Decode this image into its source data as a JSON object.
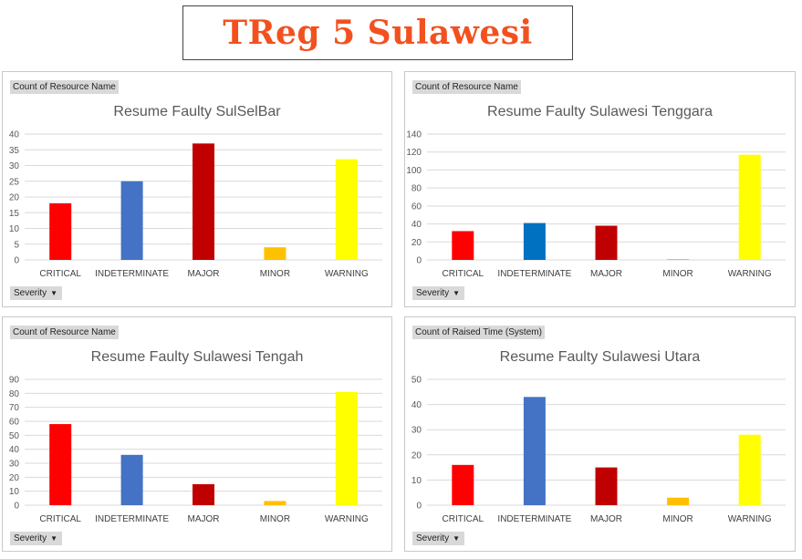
{
  "banner": {
    "title": "TReg 5 Sulawesi",
    "color": "#f2511f"
  },
  "colors": {
    "CRITICAL": "#ff0000",
    "INDETERMINATE": "#4472c4",
    "MAJOR": "#c00000",
    "MINOR": "#ffc000",
    "WARNING": "#ffff00"
  },
  "filter_label": "Severity",
  "panels": [
    {
      "field_label": "Count of Resource Name"
    },
    {
      "field_label": "Count of Resource Name"
    },
    {
      "field_label": "Count of Resource Name"
    },
    {
      "field_label": "Count of Raised Time  (System)"
    }
  ],
  "chart_data": [
    {
      "type": "bar",
      "title": "Resume Faulty SulSelBar",
      "categories": [
        "CRITICAL",
        "INDETERMINATE",
        "MAJOR",
        "MINOR",
        "WARNING"
      ],
      "values": [
        18,
        25,
        37,
        4,
        32
      ],
      "ylim": [
        0,
        40
      ],
      "yticks": [
        0,
        5,
        10,
        15,
        20,
        25,
        30,
        35,
        40
      ],
      "grid": true,
      "bar_colors": [
        "#ff0000",
        "#4472c4",
        "#c00000",
        "#ffc000",
        "#ffff00"
      ]
    },
    {
      "type": "bar",
      "title": "Resume Faulty Sulawesi Tenggara",
      "categories": [
        "CRITICAL",
        "INDETERMINATE",
        "MAJOR",
        "MINOR",
        "WARNING"
      ],
      "values": [
        32,
        41,
        38,
        1,
        117
      ],
      "ylim": [
        0,
        140
      ],
      "yticks": [
        0,
        20,
        40,
        60,
        80,
        100,
        120,
        140
      ],
      "grid": true,
      "bar_colors": [
        "#ff0000",
        "#0070c0",
        "#c00000",
        "#ffc000",
        "#ffff00"
      ]
    },
    {
      "type": "bar",
      "title": "Resume Faulty Sulawesi Tengah",
      "categories": [
        "CRITICAL",
        "INDETERMINATE",
        "MAJOR",
        "MINOR",
        "WARNING"
      ],
      "values": [
        58,
        36,
        15,
        3,
        81
      ],
      "ylim": [
        0,
        90
      ],
      "yticks": [
        0,
        10,
        20,
        30,
        40,
        50,
        60,
        70,
        80,
        90
      ],
      "grid": true,
      "bar_colors": [
        "#ff0000",
        "#4472c4",
        "#c00000",
        "#ffc000",
        "#ffff00"
      ]
    },
    {
      "type": "bar",
      "title": "Resume Faulty Sulawesi Utara",
      "categories": [
        "CRITICAL",
        "INDETERMINATE",
        "MAJOR",
        "MINOR",
        "WARNING"
      ],
      "values": [
        16,
        43,
        15,
        3,
        28
      ],
      "ylim": [
        0,
        50
      ],
      "yticks": [
        0,
        10,
        20,
        30,
        40,
        50
      ],
      "grid": true,
      "bar_colors": [
        "#ff0000",
        "#4472c4",
        "#c00000",
        "#ffc000",
        "#ffff00"
      ]
    }
  ]
}
